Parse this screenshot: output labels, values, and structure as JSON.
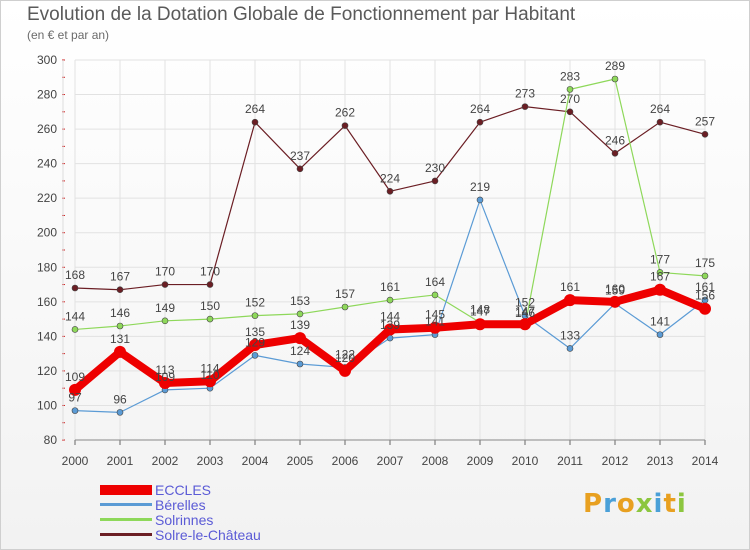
{
  "title": "Evolution de la Dotation Globale de Fonctionnement par Habitant",
  "subtitle": "(en € et par an)",
  "brand": {
    "letters": [
      "P",
      "r",
      "o",
      "x",
      "i",
      "t",
      "i"
    ],
    "colors": [
      "#e8a020",
      "#4aa0d8",
      "#e8a020",
      "#8cc63f",
      "#4aa0d8",
      "#e8a020",
      "#8cc63f"
    ]
  },
  "chart_data": {
    "type": "line",
    "title": "Evolution de la Dotation Globale de Fonctionnement par Habitant",
    "subtitle": "(en € et par an)",
    "xlabel": "",
    "ylabel": "",
    "x": [
      "2000",
      "2001",
      "2002",
      "2003",
      "2004",
      "2005",
      "2006",
      "2007",
      "2008",
      "2009",
      "2010",
      "2011",
      "2012",
      "2013",
      "2014"
    ],
    "ylim": [
      80,
      300
    ],
    "yticks": [
      80,
      100,
      120,
      140,
      160,
      180,
      200,
      220,
      240,
      260,
      280,
      300
    ],
    "grid": true,
    "legend": "bottom-left",
    "series": [
      {
        "name": "Solre-le-Château",
        "color": "#6b1e24",
        "width": 1.2,
        "marker": 3,
        "values": [
          168,
          167,
          170,
          170,
          264,
          237,
          262,
          224,
          230,
          264,
          273,
          270,
          246,
          264,
          257
        ]
      },
      {
        "name": "Solrinnes",
        "color": "#8ed85a",
        "width": 1.2,
        "marker": 3,
        "values": [
          144,
          146,
          149,
          150,
          152,
          153,
          157,
          161,
          164,
          148,
          146,
          283,
          289,
          177,
          175
        ]
      },
      {
        "name": "Bérelles",
        "color": "#5b9bd5",
        "width": 1.2,
        "marker": 3,
        "values": [
          97,
          96,
          109,
          110,
          129,
          124,
          122,
          139,
          141,
          219,
          152,
          133,
          159,
          141,
          161
        ]
      },
      {
        "name": "ECCLES",
        "color": "#ee0000",
        "width": 8,
        "marker": 6,
        "values": [
          109,
          131,
          113,
          114,
          135,
          139,
          120,
          144,
          145,
          147,
          147,
          161,
          160,
          167,
          156
        ]
      }
    ]
  }
}
